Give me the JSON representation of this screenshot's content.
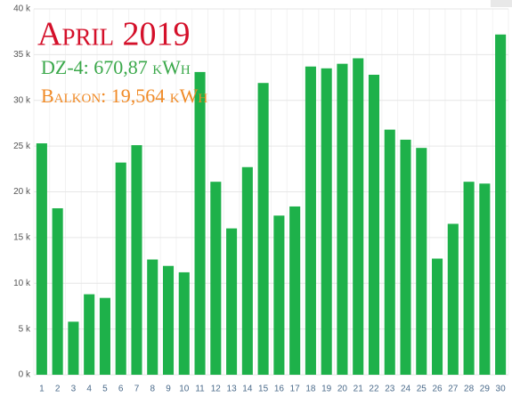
{
  "chart_data": {
    "type": "bar",
    "title": "April 2019",
    "title_color": "#d4102a",
    "annotations": [
      {
        "text": "DZ-4: 670,87 kWh",
        "color": "#3aa84a"
      },
      {
        "text": "Balkon: 19,564 kWh",
        "color": "#f08a26"
      }
    ],
    "categories": [
      "1",
      "2",
      "3",
      "4",
      "5",
      "6",
      "7",
      "8",
      "9",
      "10",
      "11",
      "12",
      "13",
      "14",
      "15",
      "16",
      "17",
      "18",
      "19",
      "20",
      "21",
      "22",
      "23",
      "24",
      "25",
      "26",
      "27",
      "28",
      "29",
      "30"
    ],
    "values": [
      25300,
      18200,
      5800,
      8800,
      8400,
      23200,
      25100,
      12600,
      11900,
      11200,
      33100,
      21100,
      16000,
      22700,
      31900,
      17400,
      18400,
      33700,
      33500,
      34000,
      34600,
      32800,
      26800,
      25700,
      24800,
      12700,
      16500,
      21100,
      20900,
      37200
    ],
    "color": "#1eb14a",
    "ylim": [
      0,
      40000
    ],
    "yticks": [
      {
        "value": 0,
        "label": "0 k"
      },
      {
        "value": 5000,
        "label": "5 k"
      },
      {
        "value": 10000,
        "label": "10 k"
      },
      {
        "value": 15000,
        "label": "15 k"
      },
      {
        "value": 20000,
        "label": "20 k"
      },
      {
        "value": 25000,
        "label": "25 k"
      },
      {
        "value": 30000,
        "label": "30 k"
      },
      {
        "value": 35000,
        "label": "35 k"
      },
      {
        "value": 40000,
        "label": "40 k"
      }
    ],
    "grid": true
  }
}
